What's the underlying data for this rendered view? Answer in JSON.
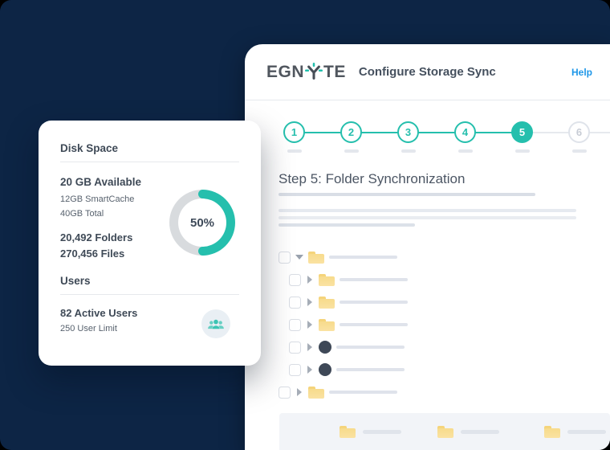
{
  "theme": {
    "navy": "#0D2545",
    "teal": "#25BFAD",
    "help_blue": "#1E97E8",
    "folder_yellow": "#F8DD90",
    "drive_icon_color": "#3E4857",
    "donut_track": "#D8DBDE"
  },
  "header": {
    "logo_pre": "EGN",
    "logo_post": "TE",
    "title": "Configure Storage Sync",
    "help_label": "Help"
  },
  "stepper": {
    "steps": [
      "1",
      "2",
      "3",
      "4",
      "5",
      "6"
    ],
    "active_step": 5
  },
  "content": {
    "heading": "Step 5: Folder Synchronization"
  },
  "disk_card": {
    "disk_heading": "Disk Space",
    "available": "20 GB Available",
    "smartcache": "12GB SmartCache",
    "total": "40GB Total",
    "percent_label": "50%",
    "percent_value": 50,
    "folders": "20,492 Folders",
    "files": "270,456 Files",
    "users_heading": "Users",
    "active_users": "82 Active Users",
    "user_limit": "250 User Limit"
  },
  "tree": {
    "rows": [
      {
        "indent": 0,
        "caret": "down",
        "icon": "folder"
      },
      {
        "indent": 1,
        "caret": "right",
        "icon": "folder"
      },
      {
        "indent": 1,
        "caret": "right",
        "icon": "folder"
      },
      {
        "indent": 1,
        "caret": "right",
        "icon": "folder"
      },
      {
        "indent": 1,
        "caret": "right",
        "icon": "drive"
      },
      {
        "indent": 1,
        "caret": "right",
        "icon": "drive"
      },
      {
        "indent": 0,
        "caret": "right",
        "icon": "folder"
      }
    ]
  },
  "footer_strip": {
    "item_lefts": [
      75,
      197,
      330
    ]
  }
}
